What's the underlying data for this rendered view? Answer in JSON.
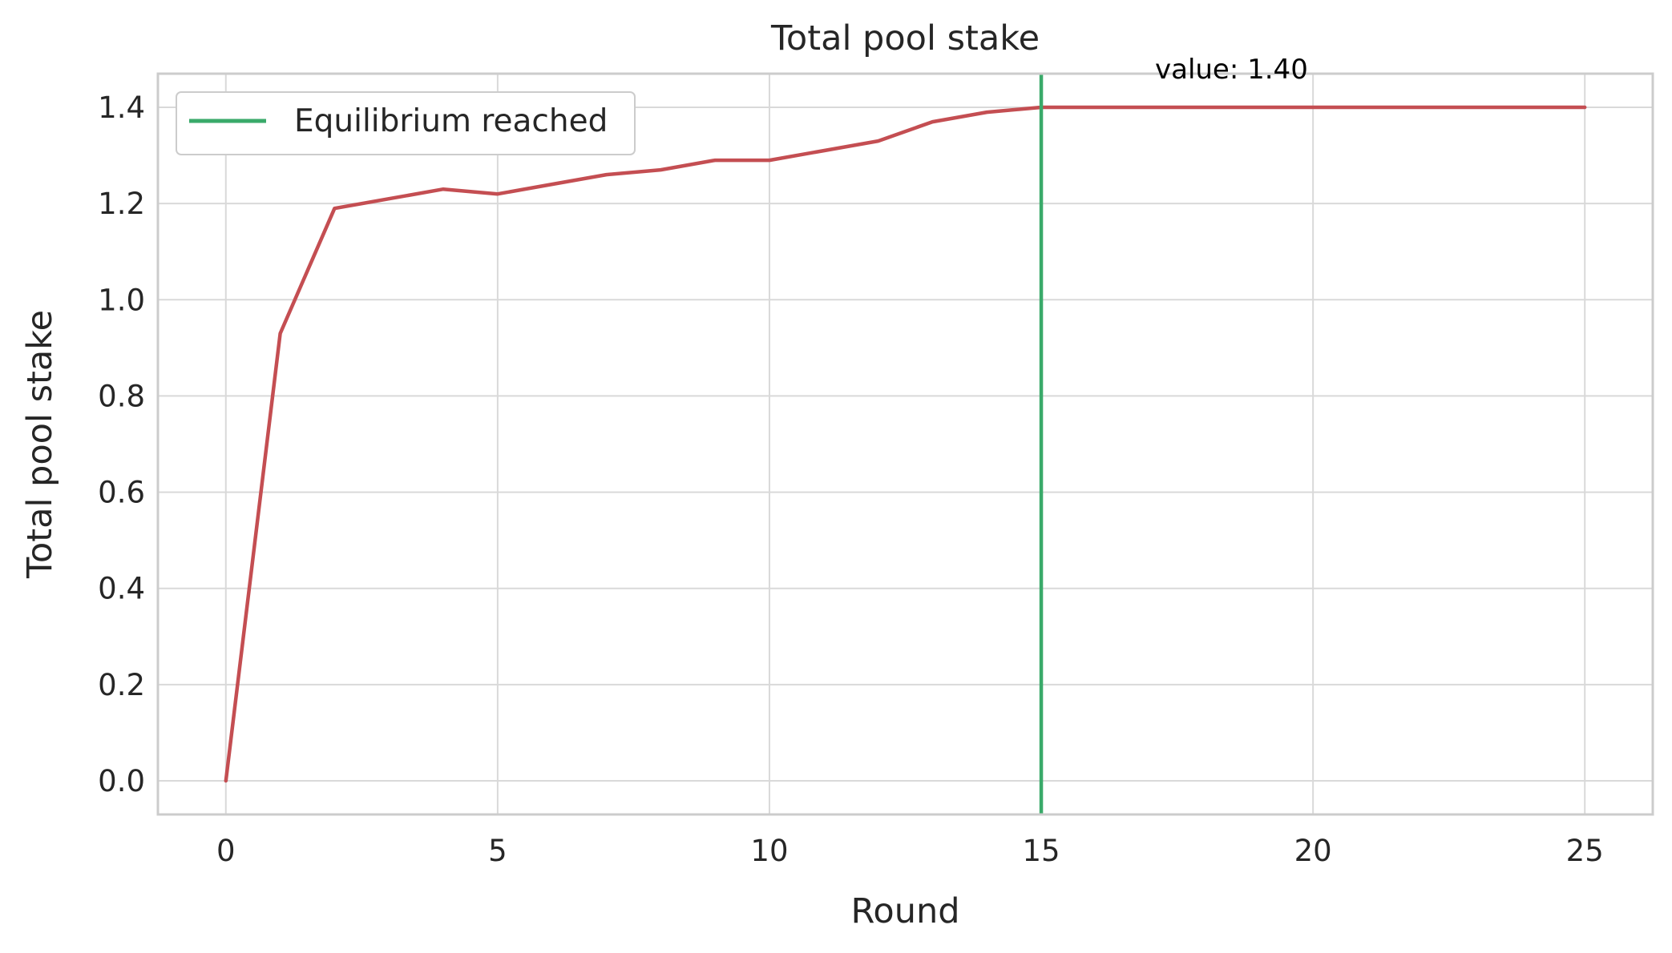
{
  "chart_data": {
    "type": "line",
    "title": "Total pool stake",
    "xlabel": "Round",
    "ylabel": "Total pool stake",
    "xlim": [
      -1.25,
      26.25
    ],
    "ylim": [
      -0.07,
      1.47
    ],
    "xticks": [
      0,
      5,
      10,
      15,
      20,
      25
    ],
    "xtick_labels": [
      "0",
      "5",
      "10",
      "15",
      "20",
      "25"
    ],
    "yticks": [
      0.0,
      0.2,
      0.4,
      0.6,
      0.8,
      1.0,
      1.2,
      1.4
    ],
    "ytick_labels": [
      "0.0",
      "0.2",
      "0.4",
      "0.6",
      "0.8",
      "1.0",
      "1.2",
      "1.4"
    ],
    "grid": true,
    "legend_position": "top-left",
    "series": [
      {
        "color": "#c44e52",
        "x": [
          0,
          1,
          2,
          3,
          4,
          5,
          6,
          7,
          8,
          9,
          10,
          11,
          12,
          13,
          14,
          15,
          16,
          17,
          18,
          19,
          20,
          21,
          22,
          23,
          24,
          25
        ],
        "y": [
          0.0,
          0.93,
          1.19,
          1.21,
          1.23,
          1.22,
          1.24,
          1.26,
          1.27,
          1.29,
          1.29,
          1.31,
          1.33,
          1.37,
          1.39,
          1.4,
          1.4,
          1.4,
          1.4,
          1.4,
          1.4,
          1.4,
          1.4,
          1.4,
          1.4,
          1.4
        ]
      }
    ],
    "vlines": [
      {
        "name": "Equilibrium reached",
        "x": 15,
        "color": "#3aaa6a"
      }
    ],
    "annotations": [
      {
        "text": "value: 1.40",
        "x": 18.5,
        "y": 1.4
      }
    ]
  }
}
